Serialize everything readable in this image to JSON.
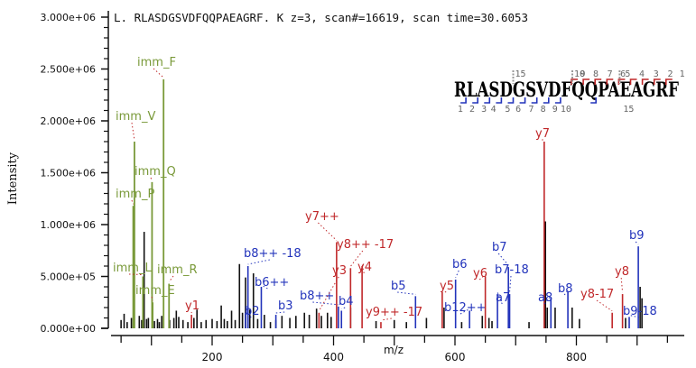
{
  "header": {
    "title": "L. RLASDGSVDFQQPAEAGRF. K z=3, scan#=16619, scan time=30.6053"
  },
  "colors": {
    "y_ion": "#c0282a",
    "b_ion": "#2233bb",
    "immonium": "#7a9a3a",
    "unassigned": "#111111",
    "axis": "#111111"
  },
  "sequence": {
    "peptide": "RLASDGSVDFQQPAEAGRF",
    "top_indices": [
      "15",
      "10",
      "9",
      "8",
      "7",
      "6",
      "5",
      "4",
      "3",
      "2",
      "1"
    ],
    "bottom_indices": [
      "1",
      "2",
      "3",
      "4",
      "5",
      "6",
      "7",
      "8",
      "9",
      "10",
      "15"
    ]
  },
  "chart_data": {
    "type": "bar",
    "title": "L. RLASDGSVDFQQPAEAGRF. K z=3, scan#=16619, scan time=30.6053",
    "xlabel": "m/z",
    "ylabel": "Intensity",
    "xlim": [
      33,
      975
    ],
    "ylim": [
      0,
      3000000
    ],
    "x_ticks": [
      200,
      400,
      600,
      800
    ],
    "y_ticks": [
      {
        "value": 0,
        "label": "0.000e+00"
      },
      {
        "value": 500000,
        "label": "5.000e+05"
      },
      {
        "value": 1000000,
        "label": "1.000e+06"
      },
      {
        "value": 1500000,
        "label": "1.500e+06"
      },
      {
        "value": 2000000,
        "label": "2.000e+06"
      },
      {
        "value": 2500000,
        "label": "2.500e+06"
      },
      {
        "value": 3000000,
        "label": "3.000e+06"
      }
    ],
    "grid": false,
    "annotated_peaks": [
      {
        "label": "imm_F",
        "type": "immonium",
        "mz": 120,
        "intensity": 2400000,
        "lx": 152,
        "ly": 73
      },
      {
        "label": "imm_V",
        "type": "immonium",
        "mz": 72,
        "intensity": 1800000,
        "lx": 128,
        "ly": 133
      },
      {
        "label": "imm_Q",
        "type": "immonium",
        "mz": 101,
        "intensity": 1410000,
        "lx": 149,
        "ly": 194
      },
      {
        "label": "imm_P",
        "type": "immonium",
        "mz": 70,
        "intensity": 1180000,
        "lx": 128,
        "ly": 219
      },
      {
        "label": "imm_L",
        "type": "immonium",
        "mz": 86,
        "intensity": 500000,
        "lx": 125,
        "ly": 301
      },
      {
        "label": "imm_R",
        "type": "immonium",
        "mz": 129,
        "intensity": 430000,
        "lx": 174,
        "ly": 303
      },
      {
        "label": "imm_E",
        "type": "immonium",
        "mz": 102,
        "intensity": 250000,
        "lx": 150,
        "ly": 326
      },
      {
        "label": "y1",
        "type": "y",
        "mz": 166,
        "intensity": 130000,
        "lx": 205,
        "ly": 343
      },
      {
        "label": "b2",
        "type": "b",
        "mz": 255,
        "intensity": 150000,
        "lx": 271,
        "ly": 349
      },
      {
        "label": "b8++ -18",
        "type": "b",
        "mz": 259,
        "intensity": 600000,
        "lx": 270,
        "ly": 285
      },
      {
        "label": "b6++",
        "type": "b",
        "mz": 281,
        "intensity": 400000,
        "lx": 282,
        "ly": 317
      },
      {
        "label": "b3",
        "type": "b",
        "mz": 305,
        "intensity": 130000,
        "lx": 308,
        "ly": 343
      },
      {
        "label": "y7++",
        "type": "y",
        "mz": 405,
        "intensity": 830000,
        "lx": 338,
        "ly": 244
      },
      {
        "label": "b8++",
        "type": "b",
        "mz": 408,
        "intensity": 210000,
        "lx": 332,
        "ly": 332
      },
      {
        "label": "y8++ -17",
        "type": "y",
        "mz": 428,
        "intensity": 580000,
        "lx": 373,
        "ly": 275
      },
      {
        "label": "y3",
        "type": "y",
        "mz": 376,
        "intensity": 150000,
        "lx": 368,
        "ly": 304
      },
      {
        "label": "y4",
        "type": "y",
        "mz": 447,
        "intensity": 600000,
        "lx": 396,
        "ly": 300
      },
      {
        "label": "b4",
        "type": "b",
        "mz": 413,
        "intensity": 170000,
        "lx": 375,
        "ly": 338
      },
      {
        "label": "b5",
        "type": "b",
        "mz": 535,
        "intensity": 310000,
        "lx": 433,
        "ly": 321
      },
      {
        "label": "y9++ -17",
        "type": "y",
        "mz": 478,
        "intensity": 60000,
        "lx": 405,
        "ly": 350
      },
      {
        "label": "y5",
        "type": "y",
        "mz": 579,
        "intensity": 350000,
        "lx": 487,
        "ly": 321
      },
      {
        "label": "b6",
        "type": "b",
        "mz": 601,
        "intensity": 470000,
        "lx": 501,
        "ly": 297
      },
      {
        "label": "b12++",
        "type": "b",
        "mz": 624,
        "intensity": 170000,
        "lx": 492,
        "ly": 345
      },
      {
        "label": "y6",
        "type": "y",
        "mz": 650,
        "intensity": 500000,
        "lx": 524,
        "ly": 307
      },
      {
        "label": "a7",
        "type": "b",
        "mz": 670,
        "intensity": 330000,
        "lx": 549,
        "ly": 334
      },
      {
        "label": "b7",
        "type": "b",
        "mz": 688,
        "intensity": 590000,
        "lx": 545,
        "ly": 278
      },
      {
        "label": "b7-18",
        "type": "b",
        "mz": 690,
        "intensity": 330000,
        "lx": 548,
        "ly": 303
      },
      {
        "label": "y7",
        "type": "y",
        "mz": 747,
        "intensity": 1800000,
        "lx": 593,
        "ly": 152
      },
      {
        "label": "a8",
        "type": "b",
        "mz": 758,
        "intensity": 300000,
        "lx": 596,
        "ly": 334
      },
      {
        "label": "b8",
        "type": "b",
        "mz": 786,
        "intensity": 350000,
        "lx": 618,
        "ly": 324
      },
      {
        "label": "y8-17",
        "type": "y",
        "mz": 859,
        "intensity": 150000,
        "lx": 643,
        "ly": 330
      },
      {
        "label": "y8",
        "type": "y",
        "mz": 876,
        "intensity": 330000,
        "lx": 681,
        "ly": 305
      },
      {
        "label": "b9-18",
        "type": "b",
        "mz": 887,
        "intensity": 110000,
        "lx": 690,
        "ly": 349
      },
      {
        "label": "b9",
        "type": "b",
        "mz": 902,
        "intensity": 790000,
        "lx": 697,
        "ly": 265
      }
    ],
    "unassigned_peaks": [
      [
        50,
        80000
      ],
      [
        55,
        140000
      ],
      [
        60,
        60000
      ],
      [
        67,
        100000
      ],
      [
        80,
        120000
      ],
      [
        84,
        80000
      ],
      [
        88,
        930000
      ],
      [
        92,
        90000
      ],
      [
        95,
        100000
      ],
      [
        105,
        70000
      ],
      [
        110,
        90000
      ],
      [
        113,
        60000
      ],
      [
        117,
        120000
      ],
      [
        130,
        80000
      ],
      [
        137,
        100000
      ],
      [
        141,
        170000
      ],
      [
        145,
        110000
      ],
      [
        152,
        80000
      ],
      [
        160,
        60000
      ],
      [
        170,
        100000
      ],
      [
        175,
        180000
      ],
      [
        182,
        60000
      ],
      [
        190,
        80000
      ],
      [
        200,
        90000
      ],
      [
        208,
        70000
      ],
      [
        215,
        220000
      ],
      [
        220,
        90000
      ],
      [
        225,
        70000
      ],
      [
        232,
        170000
      ],
      [
        238,
        80000
      ],
      [
        245,
        620000
      ],
      [
        250,
        150000
      ],
      [
        255,
        490000
      ],
      [
        262,
        180000
      ],
      [
        268,
        530000
      ],
      [
        275,
        90000
      ],
      [
        286,
        130000
      ],
      [
        296,
        60000
      ],
      [
        305,
        80000
      ],
      [
        315,
        120000
      ],
      [
        328,
        100000
      ],
      [
        338,
        120000
      ],
      [
        352,
        150000
      ],
      [
        360,
        130000
      ],
      [
        372,
        190000
      ],
      [
        380,
        120000
      ],
      [
        390,
        150000
      ],
      [
        396,
        110000
      ],
      [
        428,
        200000
      ],
      [
        470,
        70000
      ],
      [
        500,
        80000
      ],
      [
        520,
        60000
      ],
      [
        553,
        100000
      ],
      [
        582,
        200000
      ],
      [
        611,
        60000
      ],
      [
        645,
        120000
      ],
      [
        656,
        100000
      ],
      [
        661,
        70000
      ],
      [
        722,
        60000
      ],
      [
        749,
        1030000
      ],
      [
        752,
        200000
      ],
      [
        765,
        200000
      ],
      [
        793,
        200000
      ],
      [
        805,
        90000
      ],
      [
        881,
        100000
      ],
      [
        905,
        400000
      ],
      [
        908,
        290000
      ]
    ]
  }
}
